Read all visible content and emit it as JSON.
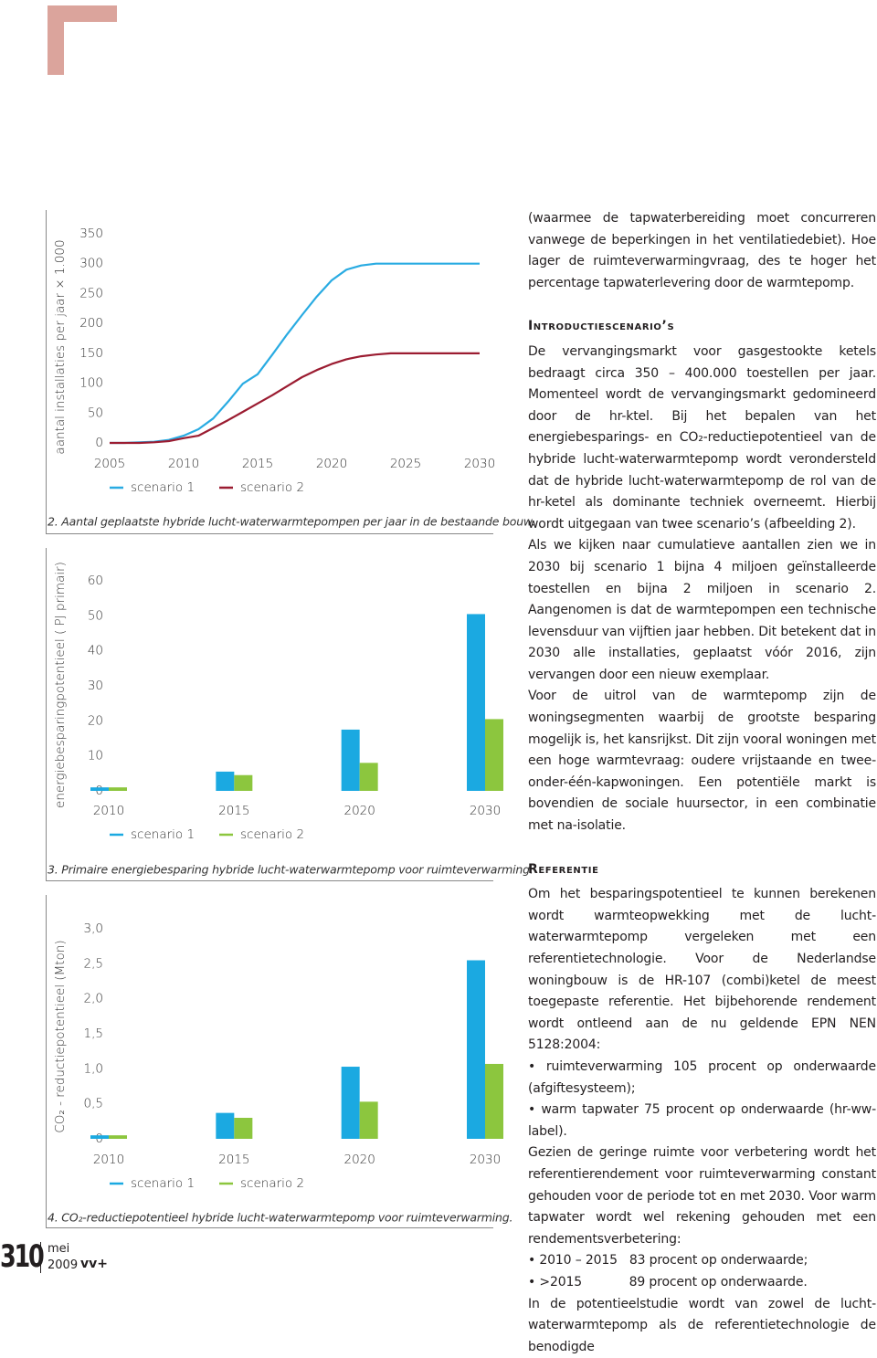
{
  "chart_data": [
    {
      "type": "line",
      "ylabel": "aantal installaties per jaar × 1.000",
      "caption": "2. Aantal geplaatste hybride lucht-waterwarmtepompen per jaar in de bestaande bouw.",
      "x": [
        2005,
        2006,
        2007,
        2008,
        2009,
        2010,
        2011,
        2012,
        2013,
        2014,
        2015,
        2016,
        2017,
        2018,
        2019,
        2020,
        2021,
        2022,
        2023,
        2024,
        2025,
        2026,
        2027,
        2028,
        2029,
        2030
      ],
      "xlim": [
        2005,
        2030
      ],
      "xticks": [
        2005,
        2010,
        2015,
        2020,
        2025,
        2030
      ],
      "ylim": [
        0,
        350
      ],
      "yticks": [
        0,
        50,
        100,
        150,
        200,
        250,
        300,
        350
      ],
      "series": [
        {
          "name": "scenario 1",
          "color": "#29abe2",
          "values": [
            0,
            0,
            1,
            2,
            5,
            12,
            23,
            41,
            69,
            99,
            115,
            148,
            182,
            214,
            245,
            272,
            290,
            297,
            300,
            300,
            300,
            300,
            300,
            300,
            300,
            300
          ]
        },
        {
          "name": "scenario 2",
          "color": "#9b1c31",
          "values": [
            0,
            0,
            0,
            1,
            3,
            8,
            12,
            25,
            38,
            52,
            66,
            80,
            95,
            110,
            122,
            132,
            140,
            145,
            148,
            150,
            150,
            150,
            150,
            150,
            150,
            150
          ]
        }
      ]
    },
    {
      "type": "bar",
      "ylabel": "energiebesparingpotentieel ( PJ primair)",
      "caption": "3. Primaire energiebesparing hybride lucht-waterwarmtepomp voor ruimteverwarming.",
      "categories": [
        "2010",
        "2015",
        "2020",
        "2030"
      ],
      "ylim": [
        0,
        60
      ],
      "yticks": [
        0,
        10,
        20,
        30,
        40,
        50,
        60
      ],
      "series": [
        {
          "name": "scenario 1",
          "color": "#1ba9e1",
          "values": [
            1,
            5.5,
            17.5,
            50.5
          ]
        },
        {
          "name": "scenario 2",
          "color": "#8cc63e",
          "values": [
            1,
            4.5,
            8,
            20.5
          ]
        }
      ]
    },
    {
      "type": "bar",
      "ylabel": "CO₂ - reductiepotentieel (Mton)",
      "caption": "4. CO₂-reductiepotentieel hybride lucht-waterwarmtepomp voor ruimteverwarming.",
      "categories": [
        "2010",
        "2015",
        "2020",
        "2030"
      ],
      "ylim": [
        0,
        3
      ],
      "yticks": [
        0,
        {
          "value": 0.5,
          "label": "0,5"
        },
        {
          "value": 1,
          "label": "1,0"
        },
        {
          "value": 1.5,
          "label": "1,5"
        },
        {
          "value": 2,
          "label": "2,0"
        },
        {
          "value": 2.5,
          "label": "2,5"
        },
        {
          "value": 3,
          "label": "3,0"
        }
      ],
      "series": [
        {
          "name": "scenario 1",
          "color": "#1ba9e1",
          "values": [
            0.05,
            0.37,
            1.03,
            2.55
          ]
        },
        {
          "name": "scenario 2",
          "color": "#8cc63e",
          "values": [
            0.05,
            0.3,
            0.53,
            1.07
          ]
        }
      ]
    }
  ],
  "article": {
    "intro": "(waarmee de tapwaterbereiding moet concurreren vanwege de beperkingen in het ventilatiedebiet). Hoe lager de ruimteverwarmingvraag, des te hoger het percentage tapwaterlevering door de warmtepomp.",
    "sections": [
      {
        "heading": "Introductiescenario’s",
        "paragraphs": [
          "De vervangingsmarkt voor gasgestookte ketels bedraagt circa 350 – 400.000 toestellen per jaar. Momenteel wordt de vervangingsmarkt gedomineerd door de hr-ktel. Bij het bepalen van het energiebesparings- en CO₂-reductiepotentieel van de hybride lucht-waterwarmtepomp wordt verondersteld dat de hybride lucht-waterwarmtepomp de rol van de hr-ketel als dominante techniek overneemt. Hierbij wordt uitgegaan van twee scenario’s (afbeelding 2).",
          "Als we kijken naar cumulatieve aantallen zien we in 2030 bij scenario 1 bijna 4 miljoen geïnstalleerde toestellen en bijna 2 miljoen in scenario 2. Aangenomen is dat de warmtepompen een technische levensduur van vijftien jaar hebben. Dit betekent dat in 2030 alle installaties, geplaatst vóór 2016, zijn vervangen door een nieuw exemplaar.",
          "Voor de uitrol van de warmtepomp zijn de woningsegmenten waarbij de grootste besparing mogelijk is, het kansrijkst. Dit zijn vooral woningen met een hoge warmtevraag: oudere vrijstaande en twee-onder-één-kapwoningen. Een potentiële markt is bovendien de sociale huursector, in een combinatie met na-isolatie."
        ]
      },
      {
        "heading": "Referentie",
        "paragraphs": [
          "Om het besparingspotentieel te kunnen berekenen wordt warmteopwekking met de lucht-waterwarmtepomp vergeleken met een referentietechnologie. Voor de Nederlandse woningbouw is de HR-107 (combi)ketel de meest toegepaste referentie. Het bijbehorende rendement wordt ontleend aan de nu geldende EPN NEN 5128:2004:",
          "• ruimteverwarming 105 procent op onderwaarde (afgiftesysteem);",
          "• warm tapwater 75 procent op onderwaarde (hr-ww-label).",
          "Gezien de geringe ruimte voor verbetering wordt het referentierendement voor ruimteverwarming constant gehouden voor de periode tot en met 2030. Voor warm tapwater wordt wel rekening gehouden met een rendementsverbetering:",
          "• 2010 – 2015   83 procent op onderwaarde;",
          "• >2015            89 procent op onderwaarde.",
          "In de potentieelstudie wordt van zowel de lucht-waterwarmtepomp als de referentietechnologie de benodigde"
        ]
      }
    ]
  },
  "footer": {
    "page": "310",
    "month": "mei",
    "year": "2009",
    "magazine": "vv+"
  }
}
